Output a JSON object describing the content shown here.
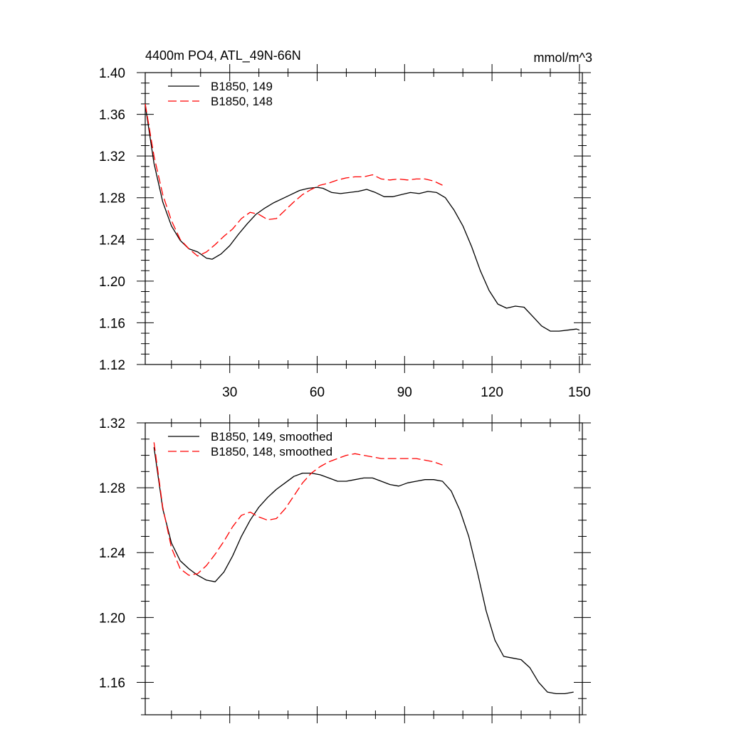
{
  "chart_data": [
    {
      "type": "line",
      "title": "4400m PO4, ATL_49N-66N",
      "units": "mmol/m^3",
      "xlim": [
        1,
        151
      ],
      "ylim": [
        1.12,
        1.4
      ],
      "x_ticks": [
        30,
        60,
        90,
        120,
        150
      ],
      "y_ticks": [
        1.12,
        1.16,
        1.2,
        1.24,
        1.28,
        1.32,
        1.36,
        1.4
      ],
      "y_tick_labels": [
        "1.12",
        "1.16",
        "1.20",
        "1.24",
        "1.28",
        "1.32",
        "1.36",
        "1.40"
      ],
      "legend_position": "top-left",
      "series": [
        {
          "name": "B1850, 149",
          "color": "#000000",
          "dash": "solid",
          "x": [
            1,
            4,
            7,
            10,
            13,
            16,
            19,
            22,
            24,
            27,
            30,
            33,
            36,
            39,
            42,
            45,
            48,
            51,
            54,
            57,
            60,
            62,
            65,
            68,
            71,
            74,
            77,
            80,
            83,
            86,
            89,
            92,
            95,
            98,
            101,
            104,
            107,
            110,
            113,
            116,
            119,
            122,
            125,
            128,
            131,
            134,
            137,
            140,
            143,
            146,
            149,
            150
          ],
          "y": [
            1.369,
            1.313,
            1.276,
            1.253,
            1.239,
            1.231,
            1.228,
            1.222,
            1.221,
            1.226,
            1.234,
            1.245,
            1.255,
            1.264,
            1.27,
            1.275,
            1.279,
            1.283,
            1.287,
            1.289,
            1.29,
            1.289,
            1.285,
            1.284,
            1.285,
            1.286,
            1.288,
            1.285,
            1.281,
            1.281,
            1.283,
            1.285,
            1.284,
            1.286,
            1.285,
            1.28,
            1.268,
            1.253,
            1.233,
            1.21,
            1.191,
            1.178,
            1.174,
            1.176,
            1.175,
            1.166,
            1.157,
            1.152,
            1.152,
            1.153,
            1.154,
            1.153
          ]
        },
        {
          "name": "B1850, 148",
          "color": "#ff0000",
          "dash": "dashed",
          "x": [
            1,
            4,
            7,
            10,
            13,
            16,
            19,
            22,
            25,
            28,
            31,
            34,
            37,
            40,
            43,
            46,
            49,
            52,
            55,
            58,
            61,
            64,
            67,
            70,
            73,
            76,
            79,
            82,
            85,
            88,
            91,
            94,
            97,
            100,
            103
          ],
          "y": [
            1.37,
            1.32,
            1.283,
            1.258,
            1.24,
            1.231,
            1.224,
            1.228,
            1.235,
            1.243,
            1.25,
            1.26,
            1.266,
            1.264,
            1.259,
            1.26,
            1.268,
            1.276,
            1.283,
            1.288,
            1.292,
            1.294,
            1.297,
            1.299,
            1.3,
            1.3,
            1.302,
            1.298,
            1.297,
            1.298,
            1.297,
            1.298,
            1.298,
            1.296,
            1.292
          ]
        }
      ]
    },
    {
      "type": "line",
      "title": "",
      "xlim": [
        1,
        151
      ],
      "ylim": [
        1.14,
        1.32
      ],
      "x_ticks": [
        30,
        60,
        90,
        120,
        150
      ],
      "y_ticks": [
        1.16,
        1.2,
        1.24,
        1.28,
        1.32
      ],
      "y_tick_labels": [
        "1.16",
        "1.20",
        "1.24",
        "1.28",
        "1.32"
      ],
      "legend_position": "top-left",
      "series": [
        {
          "name": "B1850, 149, smoothed",
          "color": "#000000",
          "dash": "solid",
          "x": [
            4,
            7,
            10,
            13,
            16,
            19,
            22,
            25,
            28,
            31,
            34,
            37,
            40,
            43,
            46,
            49,
            52,
            55,
            58,
            61,
            64,
            67,
            70,
            73,
            76,
            79,
            82,
            85,
            88,
            91,
            94,
            97,
            100,
            103,
            106,
            109,
            112,
            115,
            118,
            121,
            124,
            127,
            130,
            133,
            136,
            139,
            142,
            145,
            148
          ],
          "y": [
            1.305,
            1.267,
            1.246,
            1.235,
            1.23,
            1.226,
            1.223,
            1.222,
            1.228,
            1.238,
            1.25,
            1.26,
            1.268,
            1.274,
            1.279,
            1.283,
            1.287,
            1.289,
            1.289,
            1.288,
            1.286,
            1.284,
            1.284,
            1.285,
            1.286,
            1.286,
            1.284,
            1.282,
            1.281,
            1.283,
            1.284,
            1.285,
            1.285,
            1.284,
            1.278,
            1.266,
            1.25,
            1.228,
            1.204,
            1.186,
            1.176,
            1.175,
            1.174,
            1.169,
            1.16,
            1.154,
            1.153,
            1.153,
            1.154
          ]
        },
        {
          "name": "B1850, 148, smoothed",
          "color": "#ff0000",
          "dash": "dashed",
          "x": [
            4,
            7,
            10,
            13,
            16,
            19,
            22,
            25,
            28,
            31,
            34,
            37,
            40,
            43,
            46,
            49,
            52,
            55,
            58,
            61,
            64,
            67,
            70,
            73,
            76,
            79,
            82,
            85,
            88,
            91,
            94,
            97,
            100,
            103
          ],
          "y": [
            1.308,
            1.268,
            1.243,
            1.23,
            1.226,
            1.227,
            1.232,
            1.239,
            1.247,
            1.256,
            1.263,
            1.265,
            1.262,
            1.26,
            1.261,
            1.267,
            1.275,
            1.283,
            1.289,
            1.293,
            1.296,
            1.298,
            1.3,
            1.301,
            1.3,
            1.299,
            1.298,
            1.298,
            1.298,
            1.298,
            1.298,
            1.297,
            1.296,
            1.294
          ]
        }
      ]
    }
  ]
}
